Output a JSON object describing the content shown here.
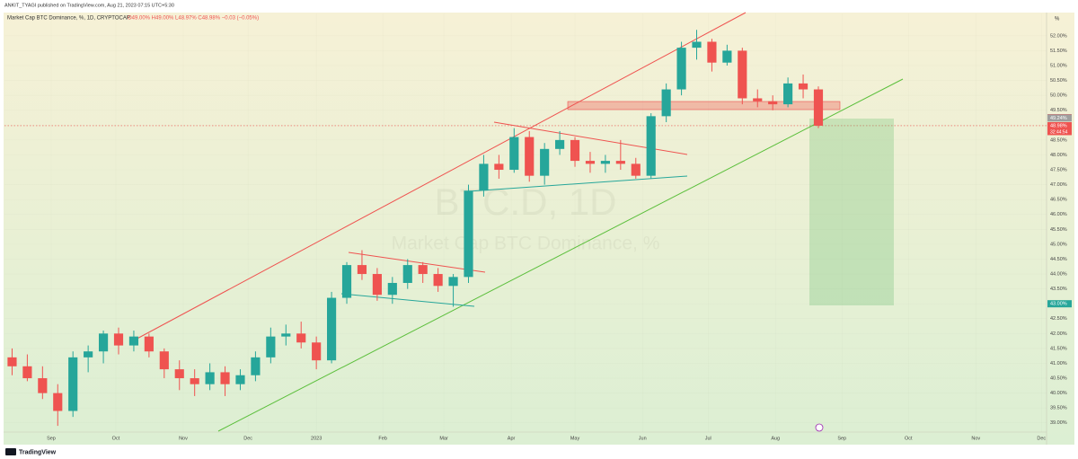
{
  "chart_data": {
    "type": "candlestick",
    "publisher": "ANKIT_TYAGI published on TradingView.com, Aug 21, 2023 07:15 UTC+5:30",
    "title": "Market Cap BTC Dominance, %, 1D, CRYPTOCAP",
    "ohlc_legend": "O49.00% H49.00% L48.97% C48.98% −0.03 (−0.05%)",
    "watermark": "BTC.D, 1D",
    "watermark_subtitle": "Market Cap BTC Dominance, %",
    "percent_toggle": "%",
    "footer": "TradingView",
    "up_color": "#26a69a",
    "down_color": "#ef5350",
    "ohlc": [
      [
        41.2,
        41.5,
        40.6,
        40.9
      ],
      [
        40.9,
        41.3,
        40.4,
        40.5
      ],
      [
        40.5,
        40.9,
        39.8,
        40.0
      ],
      [
        40.0,
        40.3,
        38.9,
        39.4
      ],
      [
        39.4,
        41.4,
        39.2,
        41.2
      ],
      [
        41.2,
        41.6,
        40.7,
        41.4
      ],
      [
        41.4,
        42.1,
        41.0,
        42.0
      ],
      [
        42.0,
        42.2,
        41.3,
        41.6
      ],
      [
        41.6,
        42.1,
        41.4,
        41.9
      ],
      [
        41.9,
        42.0,
        41.2,
        41.4
      ],
      [
        41.4,
        41.5,
        40.5,
        40.8
      ],
      [
        40.8,
        41.1,
        40.1,
        40.5
      ],
      [
        40.5,
        40.8,
        39.9,
        40.3
      ],
      [
        40.3,
        41.0,
        40.1,
        40.7
      ],
      [
        40.7,
        40.9,
        39.9,
        40.3
      ],
      [
        40.3,
        40.8,
        40.1,
        40.6
      ],
      [
        40.6,
        41.4,
        40.4,
        41.2
      ],
      [
        41.2,
        42.2,
        41.0,
        41.9
      ],
      [
        41.9,
        42.3,
        41.6,
        42.0
      ],
      [
        42.0,
        42.4,
        41.5,
        41.7
      ],
      [
        41.7,
        41.9,
        40.8,
        41.1
      ],
      [
        41.1,
        43.4,
        41.0,
        43.2
      ],
      [
        43.2,
        44.4,
        43.0,
        44.3
      ],
      [
        44.3,
        44.8,
        43.8,
        44.0
      ],
      [
        44.0,
        44.2,
        43.1,
        43.3
      ],
      [
        43.3,
        43.9,
        43.0,
        43.7
      ],
      [
        43.7,
        44.5,
        43.5,
        44.3
      ],
      [
        44.3,
        44.4,
        43.7,
        44.0
      ],
      [
        44.0,
        44.2,
        43.4,
        43.6
      ],
      [
        43.6,
        44.0,
        42.9,
        43.9
      ],
      [
        43.9,
        47.0,
        43.7,
        46.8
      ],
      [
        46.8,
        48.0,
        46.6,
        47.7
      ],
      [
        47.7,
        48.0,
        47.2,
        47.5
      ],
      [
        47.5,
        48.9,
        47.4,
        48.6
      ],
      [
        48.6,
        48.8,
        47.1,
        47.3
      ],
      [
        47.3,
        48.4,
        47.0,
        48.2
      ],
      [
        48.2,
        48.8,
        48.0,
        48.5
      ],
      [
        48.5,
        48.6,
        47.6,
        47.8
      ],
      [
        47.8,
        48.1,
        47.4,
        47.7
      ],
      [
        47.7,
        48.0,
        47.4,
        47.8
      ],
      [
        47.8,
        48.5,
        47.5,
        47.7
      ],
      [
        47.7,
        47.9,
        47.2,
        47.3
      ],
      [
        47.3,
        49.4,
        47.2,
        49.3
      ],
      [
        49.3,
        50.4,
        49.1,
        50.2
      ],
      [
        50.2,
        51.8,
        50.0,
        51.6
      ],
      [
        51.6,
        52.2,
        51.2,
        51.8
      ],
      [
        51.8,
        51.9,
        50.8,
        51.1
      ],
      [
        51.1,
        51.7,
        51.0,
        51.5
      ],
      [
        51.5,
        51.6,
        49.7,
        49.9
      ],
      [
        49.9,
        50.2,
        49.6,
        49.8
      ],
      [
        49.8,
        50.0,
        49.5,
        49.7
      ],
      [
        49.7,
        50.6,
        49.6,
        50.4
      ],
      [
        50.4,
        50.7,
        49.9,
        50.2
      ],
      [
        50.2,
        50.3,
        48.9,
        48.98
      ]
    ],
    "xlim": [
      -0.5,
      68
    ],
    "xticks": [
      {
        "value": 2.57,
        "label": "Sep"
      },
      {
        "value": 6.82,
        "label": "Oct"
      },
      {
        "value": 11.25,
        "label": "Nov"
      },
      {
        "value": 15.51,
        "label": "Dec"
      },
      {
        "value": 20.0,
        "label": "2023"
      },
      {
        "value": 24.37,
        "label": "Feb"
      },
      {
        "value": 28.38,
        "label": "Mar"
      },
      {
        "value": 32.81,
        "label": "Apr"
      },
      {
        "value": 37.0,
        "label": "May"
      },
      {
        "value": 41.44,
        "label": "Jun"
      },
      {
        "value": 45.75,
        "label": "Jul"
      },
      {
        "value": 50.18,
        "label": "Aug"
      },
      {
        "value": 54.55,
        "label": "Sep"
      },
      {
        "value": 58.92,
        "label": "Oct"
      },
      {
        "value": 63.35,
        "label": "Nov"
      },
      {
        "value": 67.66,
        "label": "Dec"
      }
    ],
    "ylim": [
      38.42,
      52.75
    ],
    "yticks": [
      {
        "value": 39.0,
        "label": "39.00%"
      },
      {
        "value": 39.5,
        "label": "39.50%"
      },
      {
        "value": 40.0,
        "label": "40.00%"
      },
      {
        "value": 40.5,
        "label": "40.50%"
      },
      {
        "value": 41.0,
        "label": "41.00%"
      },
      {
        "value": 41.5,
        "label": "41.50%"
      },
      {
        "value": 42.0,
        "label": "42.00%"
      },
      {
        "value": 42.5,
        "label": "42.50%"
      },
      {
        "value": 43.0,
        "label": "43.00%"
      },
      {
        "value": 43.5,
        "label": "43.50%"
      },
      {
        "value": 44.0,
        "label": "44.00%"
      },
      {
        "value": 44.5,
        "label": "44.50%"
      },
      {
        "value": 45.0,
        "label": "45.00%"
      },
      {
        "value": 45.5,
        "label": "45.50%"
      },
      {
        "value": 46.0,
        "label": "46.00%"
      },
      {
        "value": 46.5,
        "label": "46.50%"
      },
      {
        "value": 47.0,
        "label": "47.00%"
      },
      {
        "value": 47.5,
        "label": "47.50%"
      },
      {
        "value": 48.0,
        "label": "48.00%"
      },
      {
        "value": 48.5,
        "label": "48.50%"
      },
      {
        "value": 49.0,
        "label": "49.00%"
      },
      {
        "value": 49.5,
        "label": "49.50%"
      },
      {
        "value": 50.0,
        "label": "50.00%"
      },
      {
        "value": 50.5,
        "label": "50.50%"
      },
      {
        "value": 51.0,
        "label": "51.00%"
      },
      {
        "value": 51.5,
        "label": "51.50%"
      },
      {
        "value": 52.0,
        "label": "52.00%"
      }
    ],
    "price_labels": [
      {
        "value": 49.25,
        "label": "49.25%",
        "color": "#ef5350"
      },
      {
        "value": 49.24,
        "label": "49.24%",
        "color": "#9e9e9e"
      },
      {
        "value": 48.98,
        "label": "48.98%",
        "color": "#ef5350"
      },
      {
        "value": 43.0,
        "label": "43.00%",
        "color": "#26a69a"
      }
    ],
    "countdown": "32:44:54"
  }
}
